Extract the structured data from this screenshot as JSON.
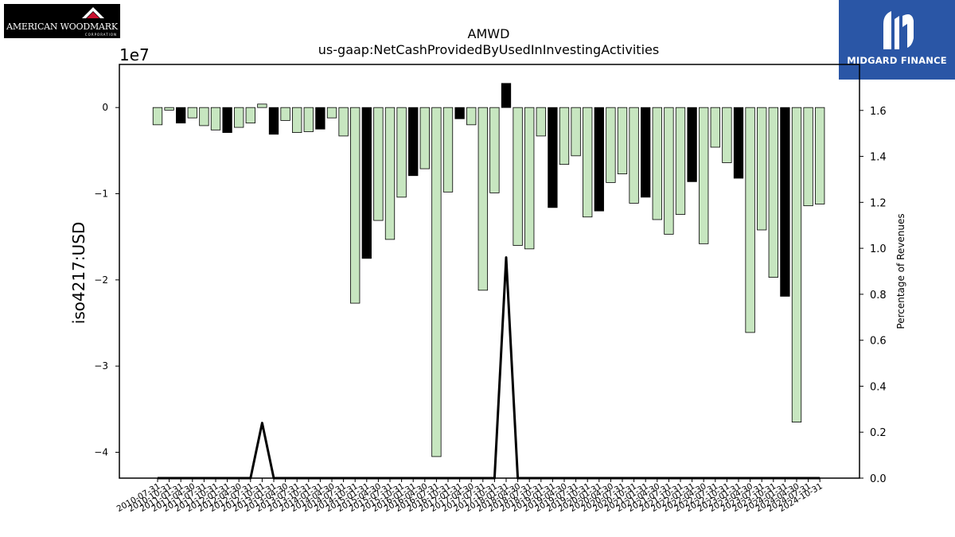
{
  "header": {
    "company_logo_text": "AMERICAN WOODMARK",
    "company_logo_subtext": "CORPORATION",
    "partner_logo_text": "MIDGARD FINANCE"
  },
  "chart_data": {
    "type": "bar",
    "title": "AMWD",
    "subtitle": "us-gaap:NetCashProvidedByUsedInInvestingActivities",
    "ylabel": "iso4217:USD",
    "ylabel_right": "Percentage of Revenues",
    "y_scale_label": "1e7",
    "ylim": [
      -4.3,
      0.5
    ],
    "y_ticks": [
      0,
      -1,
      -2,
      -3,
      -4
    ],
    "y_tick_labels": [
      "0",
      "−1",
      "−2",
      "−3",
      "−4"
    ],
    "y2lim": [
      0,
      1.8
    ],
    "y2_ticks": [
      0.0,
      0.2,
      0.4,
      0.6,
      0.8,
      1.0,
      1.2,
      1.4,
      1.6
    ],
    "y2_tick_labels": [
      "0.0",
      "0.2",
      "0.4",
      "0.6",
      "0.8",
      "1.0",
      "1.2",
      "1.4",
      "1.6"
    ],
    "categories": [
      "2010-07-31",
      "2010-10-31",
      "2011-01-31",
      "2011-04-30",
      "2011-07-31",
      "2011-10-31",
      "2012-01-31",
      "2012-04-30",
      "2012-07-31",
      "2012-10-31",
      "2013-01-31",
      "2013-04-30",
      "2013-07-31",
      "2013-10-31",
      "2014-01-31",
      "2014-04-30",
      "2014-07-31",
      "2014-10-31",
      "2015-01-31",
      "2015-04-30",
      "2015-07-31",
      "2015-10-31",
      "2016-01-31",
      "2016-04-30",
      "2016-07-31",
      "2016-10-31",
      "2017-01-31",
      "2017-04-30",
      "2017-07-31",
      "2017-10-31",
      "2018-01-31",
      "2018-04-30",
      "2018-07-31",
      "2018-10-31",
      "2019-01-31",
      "2019-04-30",
      "2019-07-31",
      "2019-10-31",
      "2020-01-31",
      "2020-04-30",
      "2020-07-31",
      "2020-10-31",
      "2021-01-31",
      "2021-04-30",
      "2021-07-31",
      "2021-10-31",
      "2022-01-31",
      "2022-04-30",
      "2022-07-31",
      "2022-10-31",
      "2023-01-31",
      "2023-04-30",
      "2023-07-31",
      "2023-10-31",
      "2024-01-31",
      "2024-04-30",
      "2024-07-31",
      "2024-10-31"
    ],
    "values": [
      -0.2,
      -0.03,
      -0.18,
      -0.12,
      -0.21,
      -0.26,
      -0.29,
      -0.23,
      -0.18,
      0.04,
      -0.31,
      -0.15,
      -0.29,
      -0.28,
      -0.25,
      -0.12,
      -0.33,
      -2.27,
      -1.75,
      -1.31,
      -1.53,
      -1.04,
      -0.79,
      -0.71,
      -4.05,
      -0.98,
      -0.13,
      -0.2,
      -2.12,
      -0.99,
      0.28,
      -1.6,
      -1.64,
      -0.33,
      -1.16,
      -0.66,
      -0.56,
      -1.27,
      -1.2,
      -0.87,
      -0.77,
      -1.11,
      -1.04,
      -1.3,
      -1.47,
      -1.24,
      -0.86,
      -1.58,
      -0.46,
      -0.64,
      -0.82,
      -2.61,
      -1.42,
      -1.97,
      -2.19,
      -3.65,
      -1.14,
      -1.12
    ],
    "highlight_color": "#000000",
    "bar_color": "#c7e6c0",
    "line_series": {
      "name": "Percentage of Revenues",
      "color": "#000000",
      "values": [
        0,
        0,
        0,
        0,
        0,
        0,
        0,
        0,
        0,
        0.24,
        0,
        0,
        0,
        0,
        0,
        0,
        0,
        0,
        0,
        0,
        0,
        0,
        0,
        0,
        0,
        0,
        0,
        0,
        0,
        0,
        0.96,
        0,
        0,
        0,
        0,
        0,
        0,
        0,
        0,
        0,
        0,
        0,
        0,
        0,
        0,
        0,
        0,
        0,
        0,
        0,
        0,
        0,
        0,
        0,
        0,
        0,
        0,
        0
      ]
    },
    "grid": false
  }
}
